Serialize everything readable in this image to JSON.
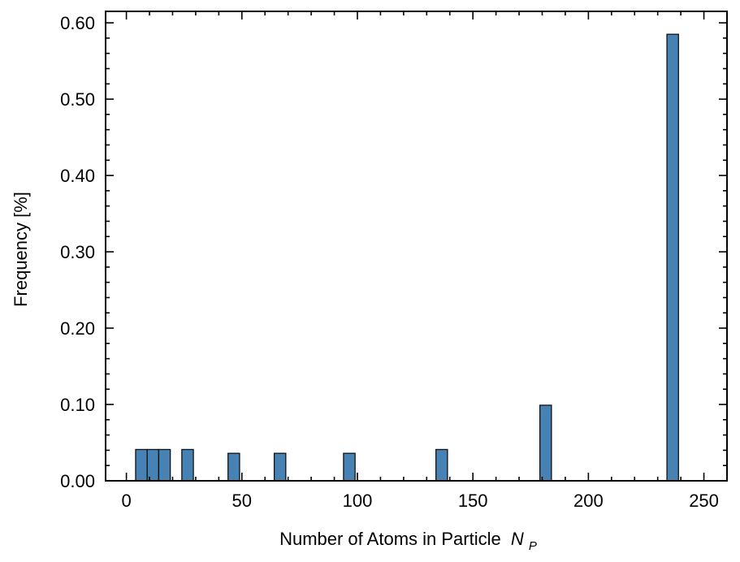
{
  "chart_data": {
    "type": "bar",
    "xlabel": "Number of Atoms in Particle",
    "xlabel_symbol": "N",
    "xlabel_subscript": "P",
    "ylabel": "Frequency [%]",
    "xlim": [
      -9,
      260
    ],
    "ylim": [
      0,
      0.615
    ],
    "xticks": [
      0,
      50,
      100,
      150,
      200,
      250
    ],
    "yticks": [
      0.0,
      0.1,
      0.2,
      0.3,
      0.4,
      0.5,
      0.6
    ],
    "xtick_labels": [
      "0",
      "50",
      "100",
      "150",
      "200",
      "250"
    ],
    "ytick_labels": [
      "0.00",
      "0.10",
      "0.20",
      "0.30",
      "0.40",
      "0.50",
      "0.60"
    ],
    "bar_width": 5,
    "grid": false,
    "colors": {
      "bar": "#4682b4",
      "edge": "#111111"
    },
    "bars": [
      {
        "x": 6.5,
        "value": 0.041
      },
      {
        "x": 11.5,
        "value": 0.041
      },
      {
        "x": 16.5,
        "value": 0.041
      },
      {
        "x": 26.5,
        "value": 0.041
      },
      {
        "x": 46.5,
        "value": 0.036
      },
      {
        "x": 66.5,
        "value": 0.036
      },
      {
        "x": 96.5,
        "value": 0.036
      },
      {
        "x": 136.5,
        "value": 0.041
      },
      {
        "x": 181.5,
        "value": 0.099
      },
      {
        "x": 236.5,
        "value": 0.585
      }
    ]
  }
}
